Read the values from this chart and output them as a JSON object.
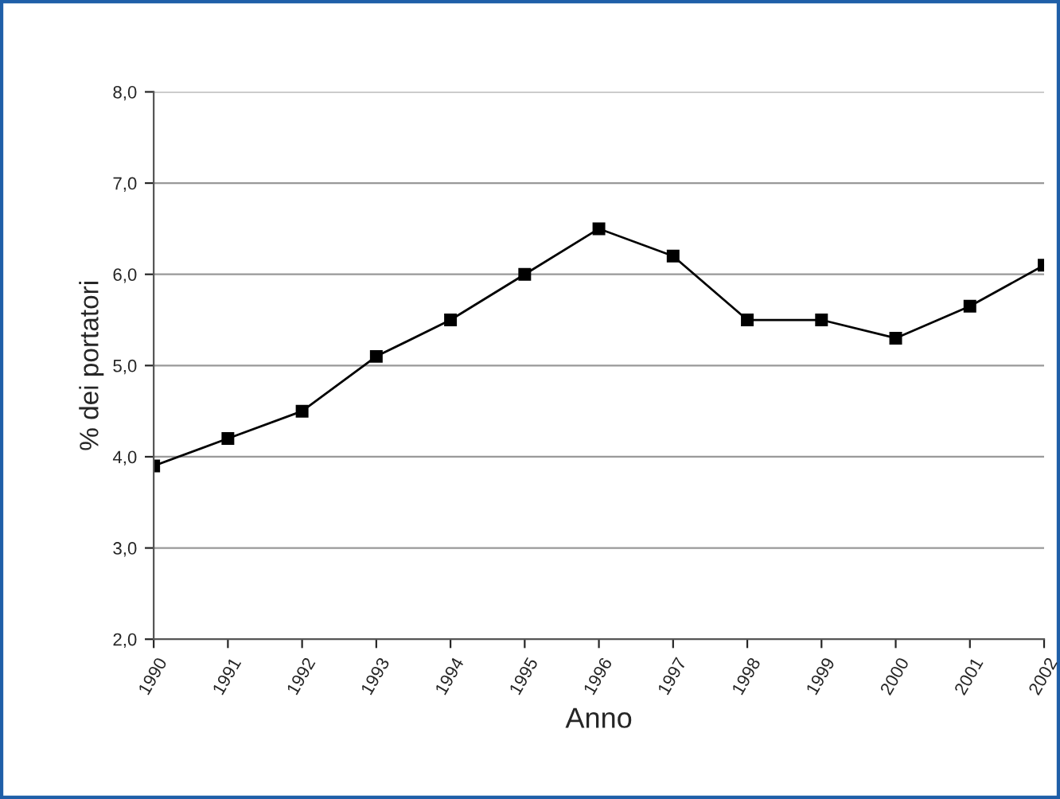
{
  "chart_data": {
    "type": "line",
    "xlabel": "Anno",
    "ylabel": "% dei portatori",
    "categories": [
      "1990",
      "1991",
      "1992",
      "1993",
      "1994",
      "1995",
      "1996",
      "1997",
      "1998",
      "1999",
      "2000",
      "2001",
      "2002"
    ],
    "series": [
      {
        "color": "#000000",
        "values": [
          3.9,
          4.2,
          4.5,
          5.1,
          5.5,
          6.0,
          6.5,
          6.2,
          5.5,
          5.5,
          5.3,
          5.65,
          6.1
        ]
      }
    ],
    "ylim": [
      2.0,
      8.0
    ],
    "yticks": [
      {
        "value": 2.0,
        "label": "2,0"
      },
      {
        "value": 3.0,
        "label": "3,0"
      },
      {
        "value": 4.0,
        "label": "4,0"
      },
      {
        "value": 5.0,
        "label": "5,0"
      },
      {
        "value": 6.0,
        "label": "6,0"
      },
      {
        "value": 7.0,
        "label": "7,0"
      },
      {
        "value": 8.0,
        "label": "8,0"
      }
    ],
    "grid": "y",
    "marker": "square",
    "line_style": "solid",
    "legend": false
  }
}
